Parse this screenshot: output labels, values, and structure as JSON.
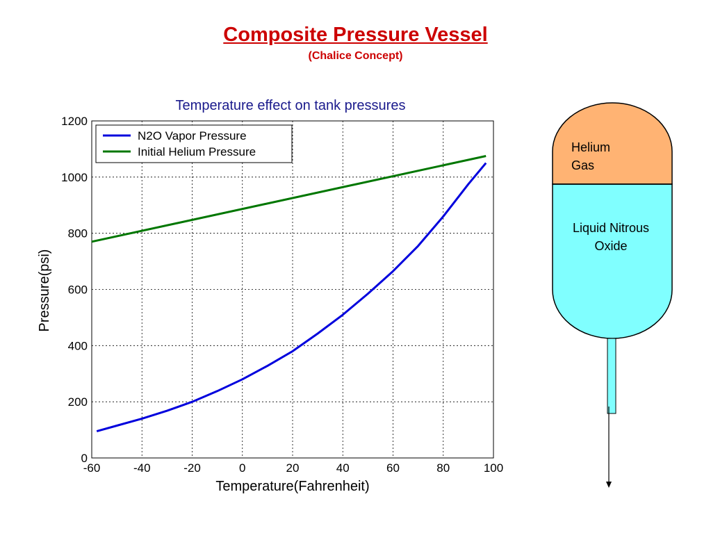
{
  "slide": {
    "title": "Composite Pressure Vessel",
    "subtitle": "(Chalice Concept)"
  },
  "chart_data": {
    "type": "line",
    "title": "Temperature effect on tank pressures",
    "xlabel": "Temperature(Fahrenheit)",
    "ylabel": "Pressure(psi)",
    "xlim": [
      -60,
      100
    ],
    "ylim": [
      0,
      1200
    ],
    "xticks": [
      "-60",
      "-40",
      "-20",
      "0",
      "20",
      "40",
      "60",
      "80",
      "100"
    ],
    "yticks": [
      "0",
      "200",
      "400",
      "600",
      "800",
      "1000",
      "1200"
    ],
    "grid": true,
    "legend_position": "top-left",
    "series": [
      {
        "name": "N2O Vapor Pressure",
        "color": "#0000dd",
        "x": [
          -58,
          -50,
          -40,
          -30,
          -20,
          -10,
          0,
          10,
          20,
          30,
          40,
          50,
          60,
          70,
          80,
          90,
          97
        ],
        "y": [
          95,
          115,
          140,
          168,
          200,
          238,
          280,
          328,
          380,
          443,
          510,
          585,
          665,
          755,
          860,
          975,
          1050
        ]
      },
      {
        "name": "Initial Helium Pressure",
        "color": "#007700",
        "x": [
          -60,
          97
        ],
        "y": [
          770,
          1075
        ]
      }
    ]
  },
  "vessel": {
    "gas_label_line1": "Helium",
    "gas_label_line2": "Gas",
    "liquid_label_line1": "Liquid Nitrous",
    "liquid_label_line2": "Oxide",
    "gas_color": "#ffb373",
    "liquid_color": "#80ffff"
  }
}
